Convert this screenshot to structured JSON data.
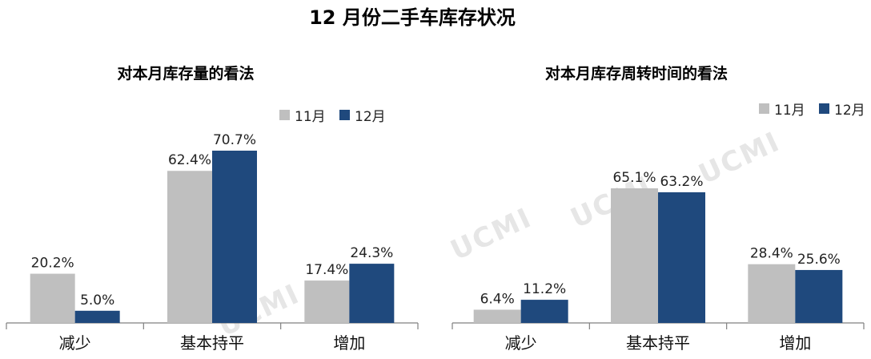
{
  "title": "12 月份二手车库存状况",
  "watermark": "UCMI",
  "colors": {
    "nov": "#bfbfbf",
    "dec": "#1f497d",
    "axis": "#808080"
  },
  "chart_data": [
    {
      "type": "bar",
      "title": "对本月库存量的看法",
      "categories": [
        "减少",
        "基本持平",
        "增加"
      ],
      "series": [
        {
          "name": "11月",
          "values": [
            20.2,
            62.4,
            17.4
          ],
          "labels": [
            "20.2%",
            "62.4%",
            "17.4%"
          ]
        },
        {
          "name": "12月",
          "values": [
            5.0,
            70.7,
            24.3
          ],
          "labels": [
            "5.0%",
            "70.7%",
            "24.3%"
          ]
        }
      ],
      "ylim": [
        0,
        80
      ],
      "grid": false,
      "legend": "top-right",
      "xlabel": "",
      "ylabel": ""
    },
    {
      "type": "bar",
      "title": "对本月库存周转时间的看法",
      "categories": [
        "减少",
        "基本持平",
        "增加"
      ],
      "series": [
        {
          "name": "11月",
          "values": [
            6.4,
            65.1,
            28.4
          ],
          "labels": [
            "6.4%",
            "65.1%",
            "28.4%"
          ]
        },
        {
          "name": "12月",
          "values": [
            11.2,
            63.2,
            25.6
          ],
          "labels": [
            "11.2%",
            "63.2%",
            "25.6%"
          ]
        }
      ],
      "ylim": [
        0,
        80
      ],
      "grid": false,
      "legend": "top-right",
      "xlabel": "",
      "ylabel": ""
    }
  ]
}
